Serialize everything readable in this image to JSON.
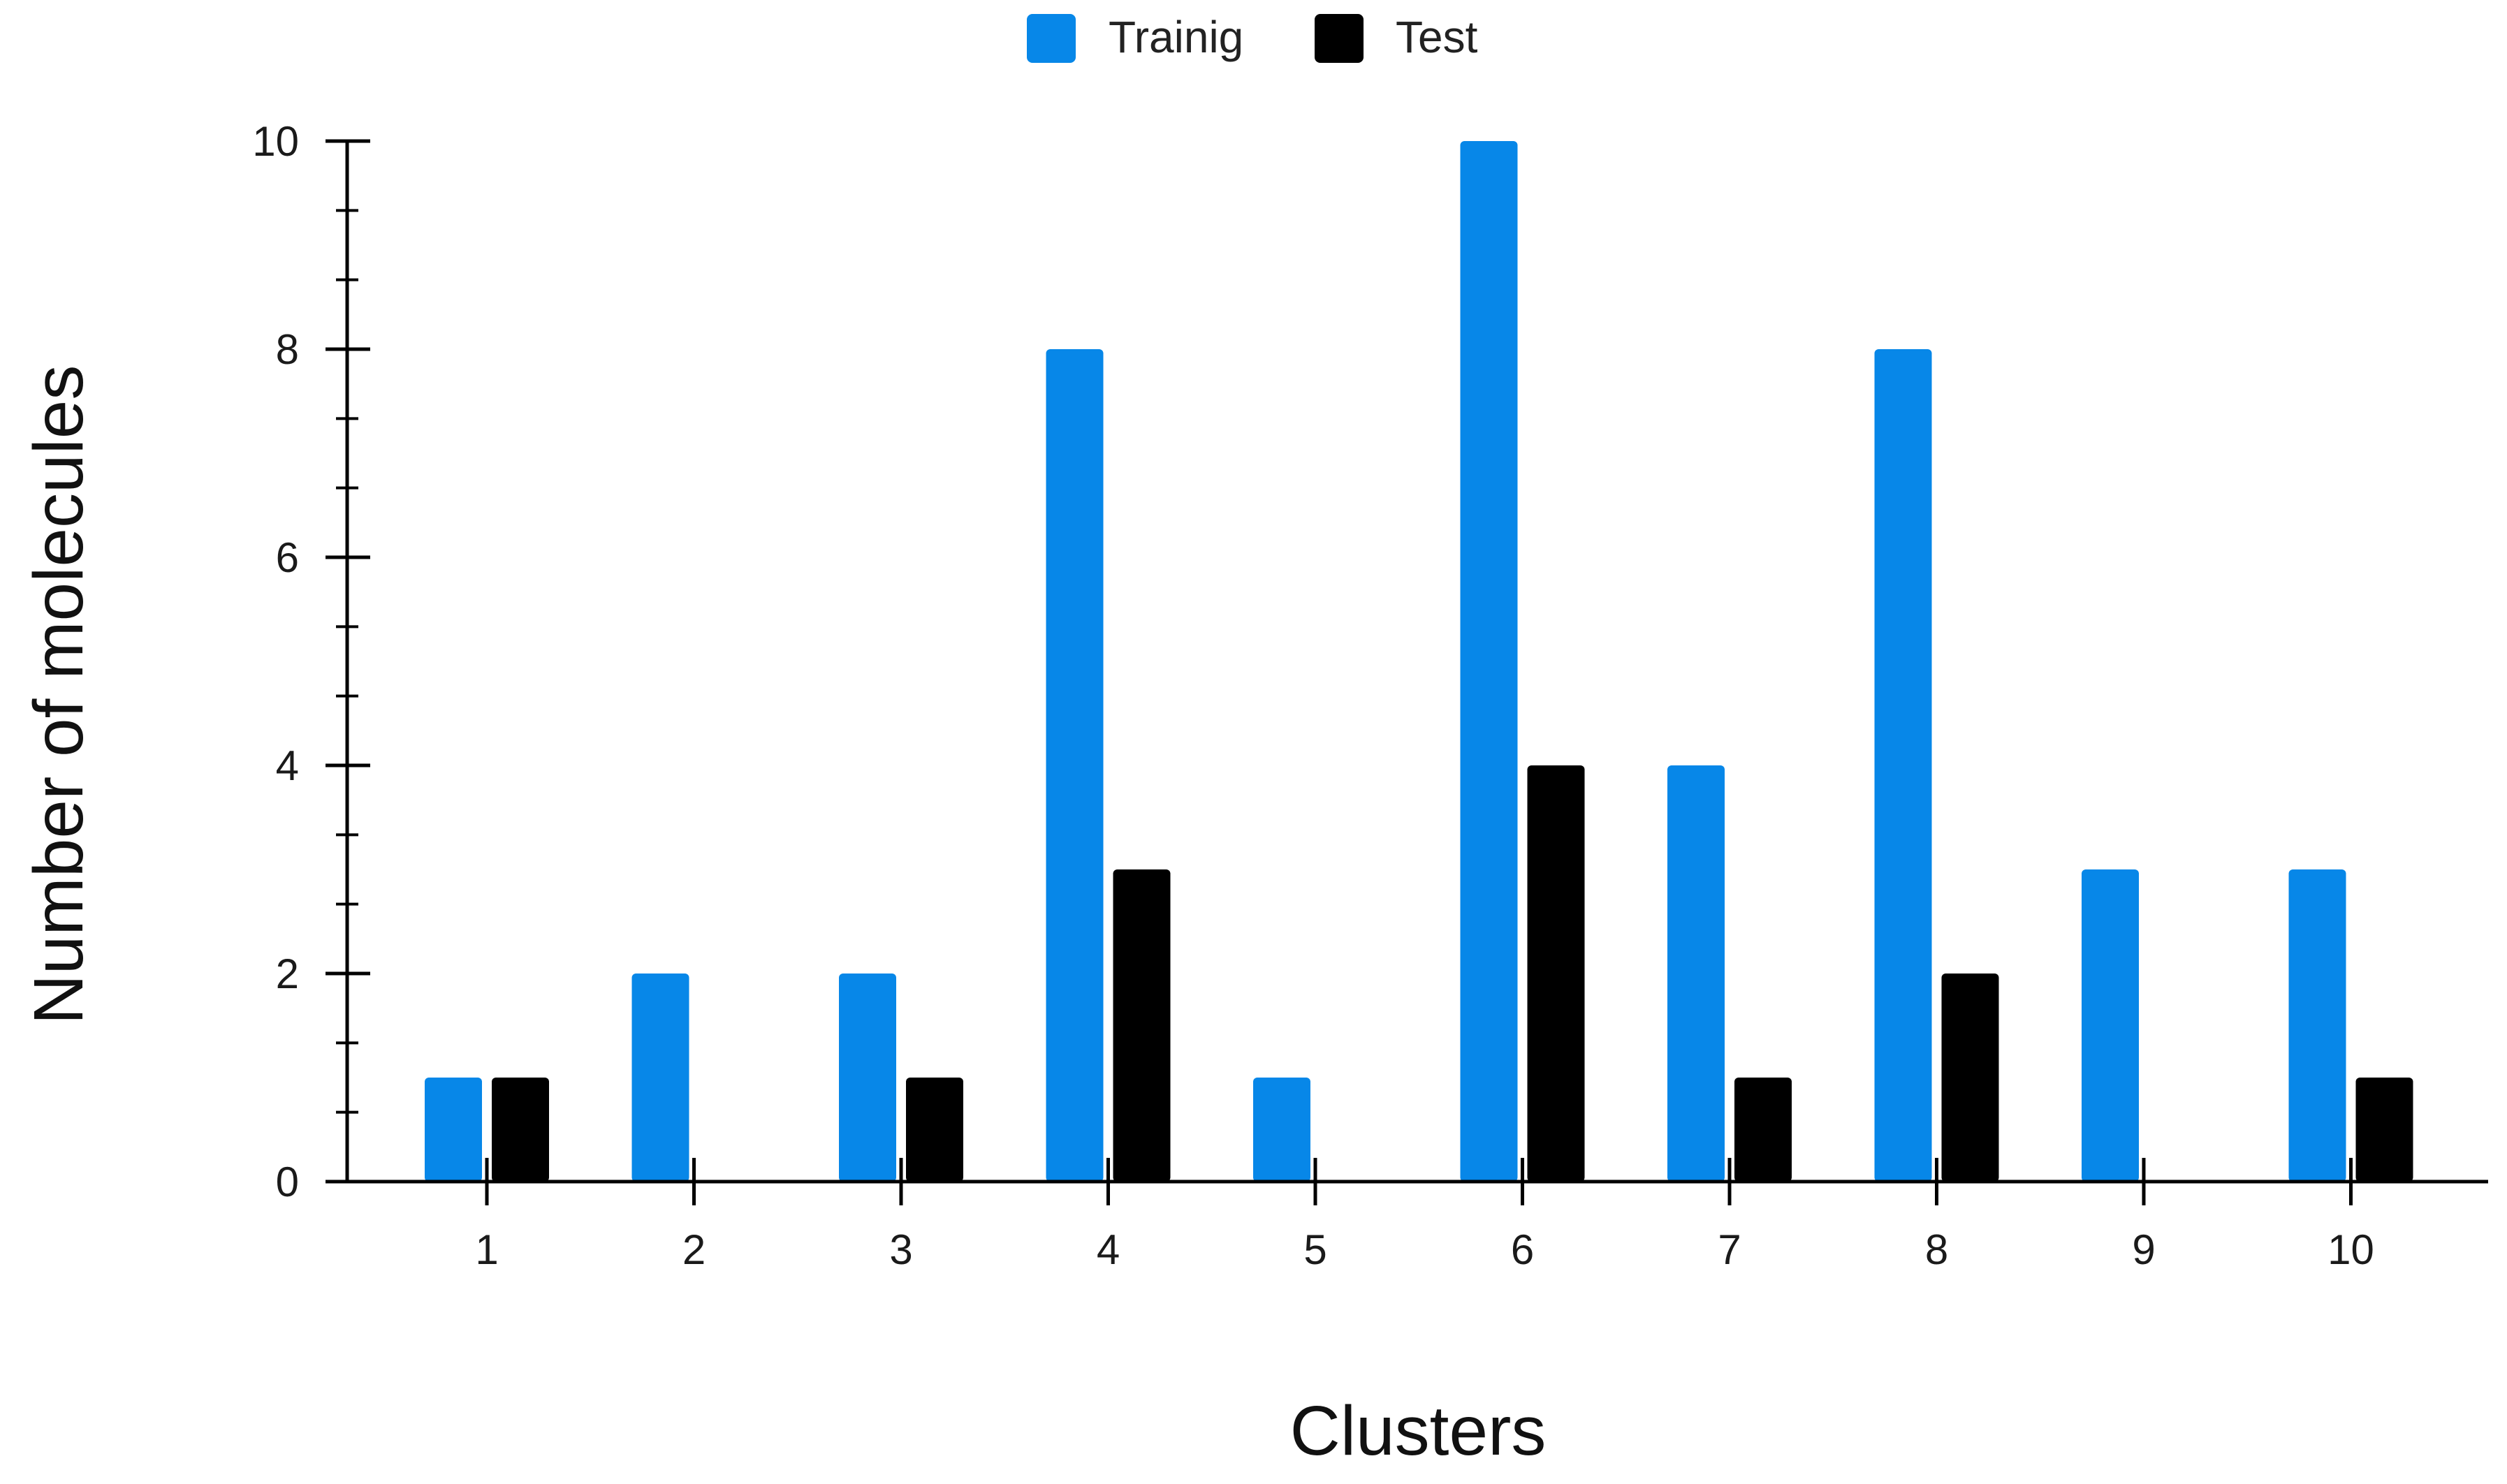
{
  "chart_data": {
    "type": "bar",
    "title": "",
    "xlabel": "Clusters",
    "ylabel": "Number of molecules",
    "categories": [
      "1",
      "2",
      "3",
      "4",
      "5",
      "6",
      "7",
      "8",
      "9",
      "10"
    ],
    "series": [
      {
        "name": "Trainig",
        "color": "#0787E8",
        "values": [
          1,
          2,
          2,
          8,
          1,
          10,
          4,
          8,
          3,
          3
        ]
      },
      {
        "name": "Test",
        "color": "#000000",
        "values": [
          1,
          0,
          1,
          3,
          0,
          4,
          1,
          2,
          0,
          1
        ]
      }
    ],
    "ylim": [
      0,
      10
    ],
    "yticks": [
      0,
      2,
      4,
      6,
      8,
      10
    ],
    "yticks_labels": [
      "0",
      "2",
      "4",
      "6",
      "8",
      "10"
    ],
    "minor_tick_step": 0.666667,
    "grid": false,
    "legend": "top-center"
  }
}
